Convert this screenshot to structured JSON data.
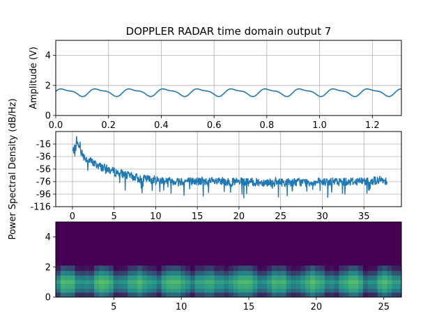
{
  "title": "DOPPLER RADAR time domain output 7",
  "colors": {
    "line": "#1f77b4",
    "grid": "#b0b0b0",
    "viridis_low": "#440154",
    "viridis_mid": "#21918c",
    "viridis_high": "#5ec962"
  },
  "chart_data": [
    {
      "type": "line",
      "title": "DOPPLER RADAR time domain output 7",
      "xlabel": "",
      "ylabel": "Amplitude (V)",
      "xlim": [
        0,
        1.31
      ],
      "ylim": [
        0,
        5
      ],
      "xticks": [
        "0.0",
        "0.2",
        "0.4",
        "0.6",
        "0.8",
        "1.0",
        "1.2"
      ],
      "yticks": [
        "0",
        "2",
        "4"
      ],
      "grid": true,
      "signal": {
        "mean": 1.55,
        "amplitude": 0.22,
        "period": 0.129
      }
    },
    {
      "type": "line",
      "title": "",
      "xlabel": "",
      "ylabel": "Power Spectral Density (dB/Hz)",
      "xlim": [
        -2,
        39.5
      ],
      "ylim": [
        -116,
        4
      ],
      "xticks": [
        "0",
        "5",
        "10",
        "15",
        "20",
        "25",
        "30",
        "35"
      ],
      "yticks": [
        "-16",
        "-36",
        "-56",
        "-76",
        "-96",
        "-116"
      ],
      "grid": true,
      "x_range": [
        0,
        37.8
      ],
      "shape": [
        [
          0,
          -28
        ],
        [
          0.6,
          -18
        ],
        [
          1.5,
          -38
        ],
        [
          3,
          -50
        ],
        [
          5,
          -60
        ],
        [
          8,
          -71
        ],
        [
          12,
          -75
        ],
        [
          20,
          -77
        ],
        [
          30,
          -77
        ],
        [
          37.8,
          -74
        ]
      ]
    },
    {
      "type": "heatmap",
      "title": "",
      "xlabel": "",
      "ylabel": "",
      "xlim": [
        0.7,
        26.3
      ],
      "ylim": [
        0,
        5
      ],
      "xticks": [
        "5",
        "10",
        "15",
        "20",
        "25"
      ],
      "yticks": [
        "0",
        "2",
        "4"
      ],
      "grid": false,
      "band": [
        {
          "from": 0,
          "to": 0.3,
          "level": 0.3
        },
        {
          "from": 0.3,
          "to": 0.55,
          "level": 0.55
        },
        {
          "from": 0.55,
          "to": 0.85,
          "level": 0.65
        },
        {
          "from": 0.85,
          "to": 1.15,
          "level": 0.75
        },
        {
          "from": 1.15,
          "to": 1.45,
          "level": 0.6
        },
        {
          "from": 1.45,
          "to": 1.75,
          "level": 0.4
        },
        {
          "from": 1.75,
          "to": 2.1,
          "level": 0.18
        }
      ]
    }
  ]
}
